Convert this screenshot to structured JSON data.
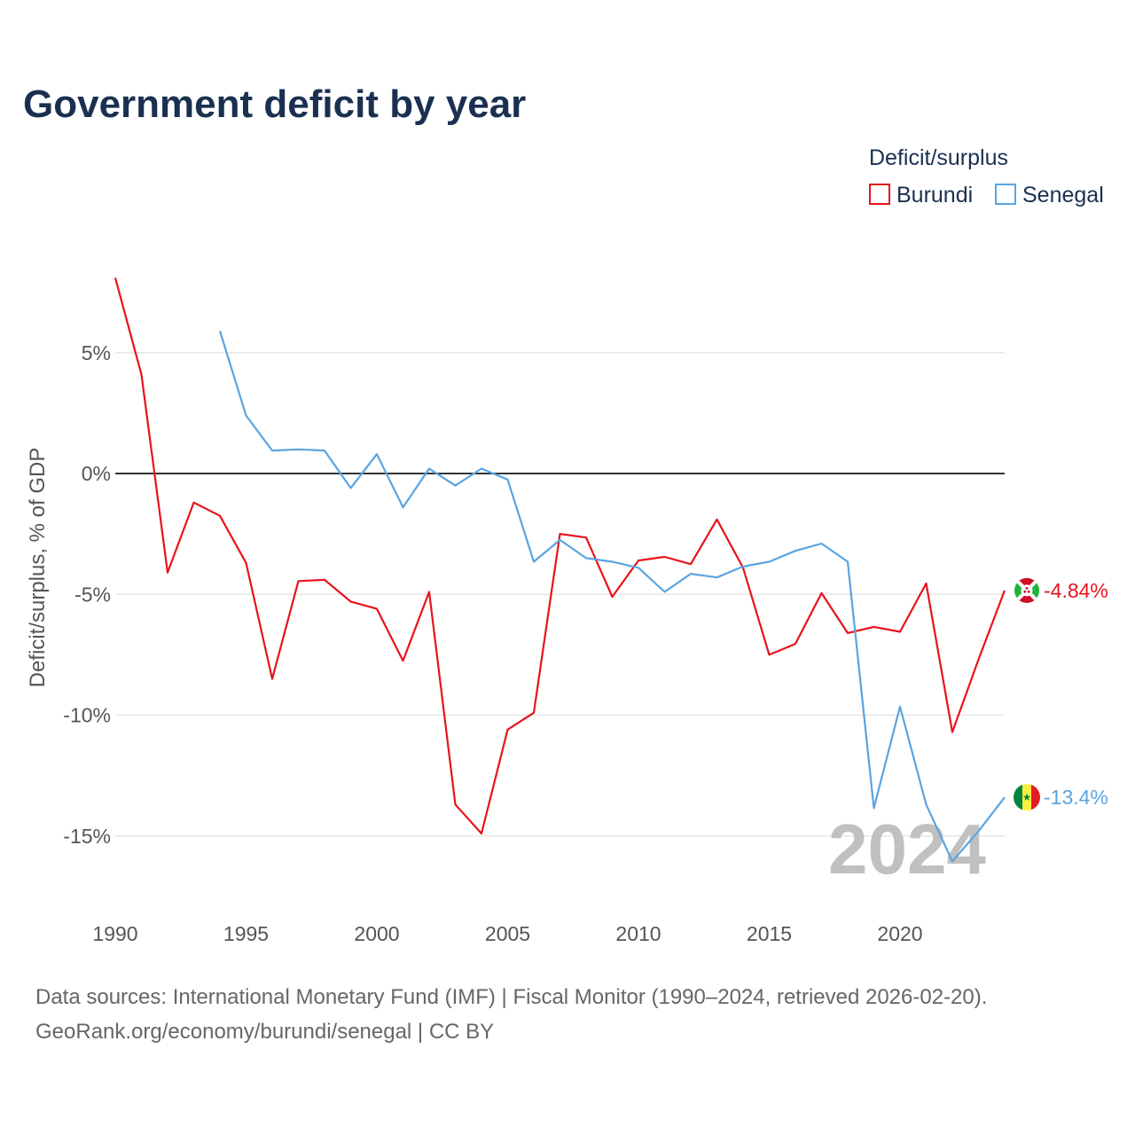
{
  "chart_data": {
    "type": "line",
    "title": "Government deficit by year",
    "xlabel": "",
    "ylabel": "Deficit/surplus, % of GDP",
    "legend_title": "Deficit/surplus",
    "legend_position": "top-right",
    "xlim": [
      1990,
      2024
    ],
    "ylim": [
      -17,
      8.5
    ],
    "x_ticks": [
      1990,
      1995,
      2000,
      2005,
      2010,
      2015,
      2020
    ],
    "x_tick_labels": [
      "1990",
      "1995",
      "2000",
      "2005",
      "2010",
      "2015",
      "2020"
    ],
    "y_ticks": [
      5,
      0,
      -5,
      -10,
      -15
    ],
    "y_tick_labels": [
      "5%",
      "0%",
      "-5%",
      "-10%",
      "-15%"
    ],
    "grid": true,
    "highlight_year": "2024",
    "series": [
      {
        "name": "Burundi",
        "color": "#e8131b",
        "end_label": "-4.84%",
        "icon": "burundi-flag-icon",
        "x": [
          1990,
          1991,
          1992,
          1993,
          1994,
          1995,
          1996,
          1997,
          1998,
          1999,
          2000,
          2001,
          2002,
          2003,
          2004,
          2005,
          2006,
          2007,
          2008,
          2009,
          2010,
          2011,
          2012,
          2013,
          2014,
          2015,
          2016,
          2017,
          2018,
          2019,
          2020,
          2021,
          2022,
          2023,
          2024
        ],
        "values": [
          8.1,
          4.1,
          -4.1,
          -1.2,
          -1.75,
          -3.7,
          -8.5,
          -4.45,
          -4.4,
          -5.3,
          -5.6,
          -7.75,
          -4.9,
          -13.7,
          -14.9,
          -10.6,
          -9.9,
          -2.5,
          -2.65,
          -5.1,
          -3.6,
          -3.45,
          -3.75,
          -1.9,
          -3.9,
          -7.5,
          -7.05,
          -4.95,
          -6.6,
          -6.35,
          -6.55,
          -4.55,
          -10.7,
          -7.7,
          -4.84
        ]
      },
      {
        "name": "Senegal",
        "color": "#5aa4e0",
        "end_label": "-13.4%",
        "icon": "senegal-flag-icon",
        "x": [
          1994,
          1995,
          1996,
          1997,
          1998,
          1999,
          2000,
          2001,
          2002,
          2003,
          2004,
          2005,
          2006,
          2007,
          2008,
          2009,
          2010,
          2011,
          2012,
          2013,
          2014,
          2015,
          2016,
          2017,
          2018,
          2019,
          2020,
          2021,
          2022,
          2023,
          2024
        ],
        "values": [
          5.9,
          2.4,
          0.95,
          1.0,
          0.95,
          -0.6,
          0.8,
          -1.4,
          0.2,
          -0.5,
          0.2,
          -0.25,
          -3.65,
          -2.75,
          -3.5,
          -3.65,
          -3.9,
          -4.9,
          -4.15,
          -4.3,
          -3.85,
          -3.65,
          -3.2,
          -2.9,
          -3.65,
          -13.85,
          -9.65,
          -13.7,
          -16.05,
          -14.8,
          -13.4
        ]
      }
    ],
    "source_text_line1": "Data sources: International Monetary Fund (IMF) | Fiscal Monitor (1990–2024, retrieved 2026-02-20).",
    "source_text_line2": "GeoRank.org/economy/burundi/senegal | CC BY"
  }
}
